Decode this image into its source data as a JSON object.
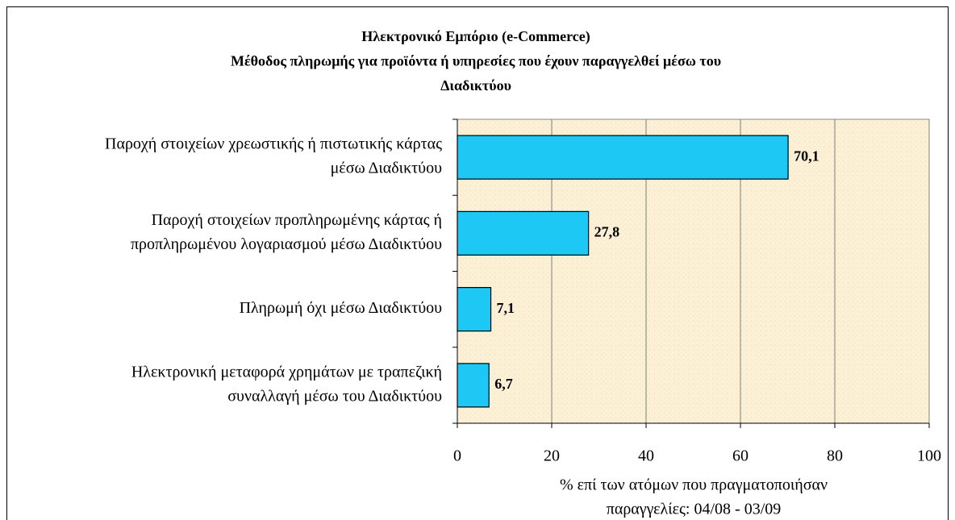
{
  "chart_data": {
    "type": "bar",
    "orientation": "horizontal",
    "title": [
      "Ηλεκτρονικό Εμπόριο (e-Commerce)",
      "Μέθοδος πληρωμής για προϊόντα ή υπηρεσίες που έχουν παραγγελθεί μέσω του",
      "Διαδικτύου"
    ],
    "categories": [
      [
        "Παροχή στοιχείων χρεωστικής ή πιστωτικής κάρτας",
        "μέσω Διαδικτύου"
      ],
      [
        "Παροχή στοιχείων προπληρωμένης κάρτας ή",
        "προπληρωμένου λογαριασμού μέσω Διαδικτύου"
      ],
      [
        "Πληρωμή όχι μέσω Διαδικτύου"
      ],
      [
        "Ηλεκτρονική μεταφορά χρημάτων με τραπεζική",
        "συναλλαγή μέσω του Διαδικτύου"
      ]
    ],
    "values": [
      70.1,
      27.8,
      7.1,
      6.7
    ],
    "value_labels": [
      "70,1",
      "27,8",
      "7,1",
      "6,7"
    ],
    "color": "#1ec8f5",
    "xlim": [
      0,
      100
    ],
    "xticks": [
      0,
      20,
      40,
      60,
      80,
      100
    ],
    "xlabel": [
      "% επί των ατόμων που πραγματοποιήσαν",
      "παραγγελίες: 04/08 - 03/09"
    ],
    "grid": true
  }
}
